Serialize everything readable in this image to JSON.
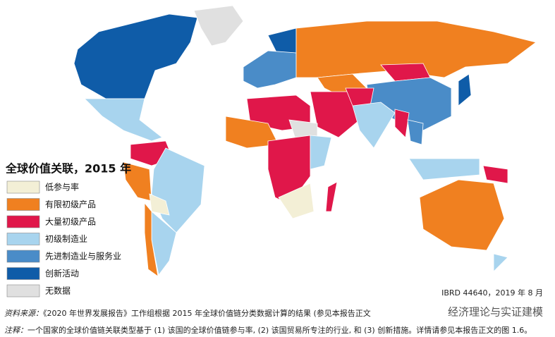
{
  "title": "全球价值关联，2015 年",
  "legend": [
    {
      "label": "低参与率",
      "color": "#f3efd6"
    },
    {
      "label": "有限初级产品",
      "color": "#f08020"
    },
    {
      "label": "大量初级产品",
      "color": "#e0174a"
    },
    {
      "label": "初级制造业",
      "color": "#a8d4ee"
    },
    {
      "label": "先进制造业与服务业",
      "color": "#4a8cc8"
    },
    {
      "label": "创新活动",
      "color": "#0f5ca8"
    },
    {
      "label": "无数据",
      "color": "#e0e0e0"
    }
  ],
  "map_id": "IBRD 44640，2019 年 8 月",
  "source": {
    "label": "资料来源：",
    "text": "《2020 年世界发展报告》工作组根据 2015 年全球价值链分类数据计算的结果 (参见本报告正文"
  },
  "note": {
    "label": "注释：",
    "text": "一个国家的全球价值链关联类型基于 (1) 该国的全球价值链参与率, (2) 该国贸易所专注的行业, 和 (3) 创新措施。详情请参见本报告正文的图 1.6。"
  },
  "watermark": "经济理论与实证建模"
}
